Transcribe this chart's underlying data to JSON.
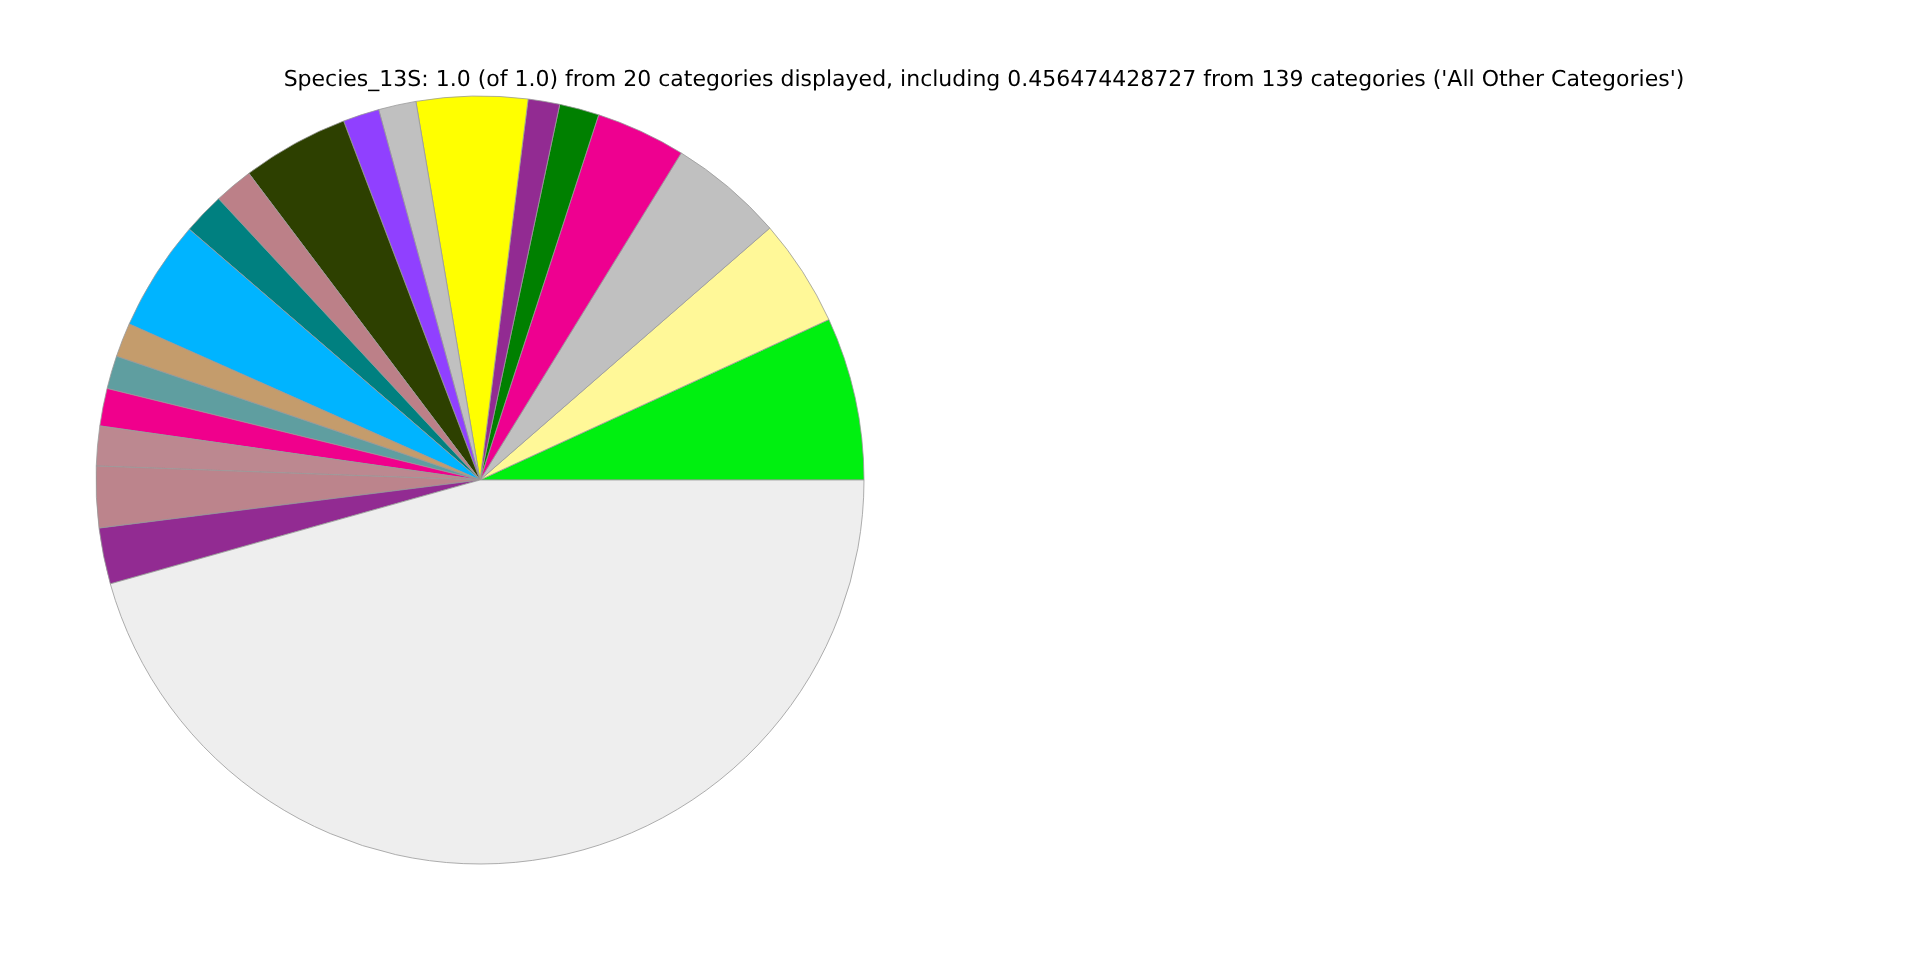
{
  "chart_data": {
    "type": "pie",
    "title": "Species_13S: 1.0 (of 1.0) from 20 categories displayed, including 0.456474428727 from 139 categories ('All Other Categories')",
    "categories": [
      null,
      null,
      null,
      null,
      null,
      null,
      null,
      null,
      null,
      null,
      null,
      null,
      null,
      null,
      null,
      null,
      null,
      null,
      null,
      null
    ],
    "values": [
      6.86,
      4.53,
      4.83,
      3.78,
      1.67,
      1.33,
      4.67,
      1.58,
      1.53,
      4.5,
      1.64,
      1.75,
      4.67,
      1.44,
      1.39,
      1.58,
      1.67,
      2.58,
      2.36,
      45.64
    ],
    "colors": [
      "#00f010",
      "#fff898",
      "#c0c0c0",
      "#ee0090",
      "#008000",
      "#922b92",
      "#ffff00",
      "#c0c0c0",
      "#9040ff",
      "#2d4000",
      "#bc8088",
      "#008080",
      "#00b4ff",
      "#c49c6c",
      "#5f9ea0",
      "#f0008c",
      "#bc8890",
      "#bc848c",
      "#922b92",
      "#eeeeee"
    ]
  }
}
